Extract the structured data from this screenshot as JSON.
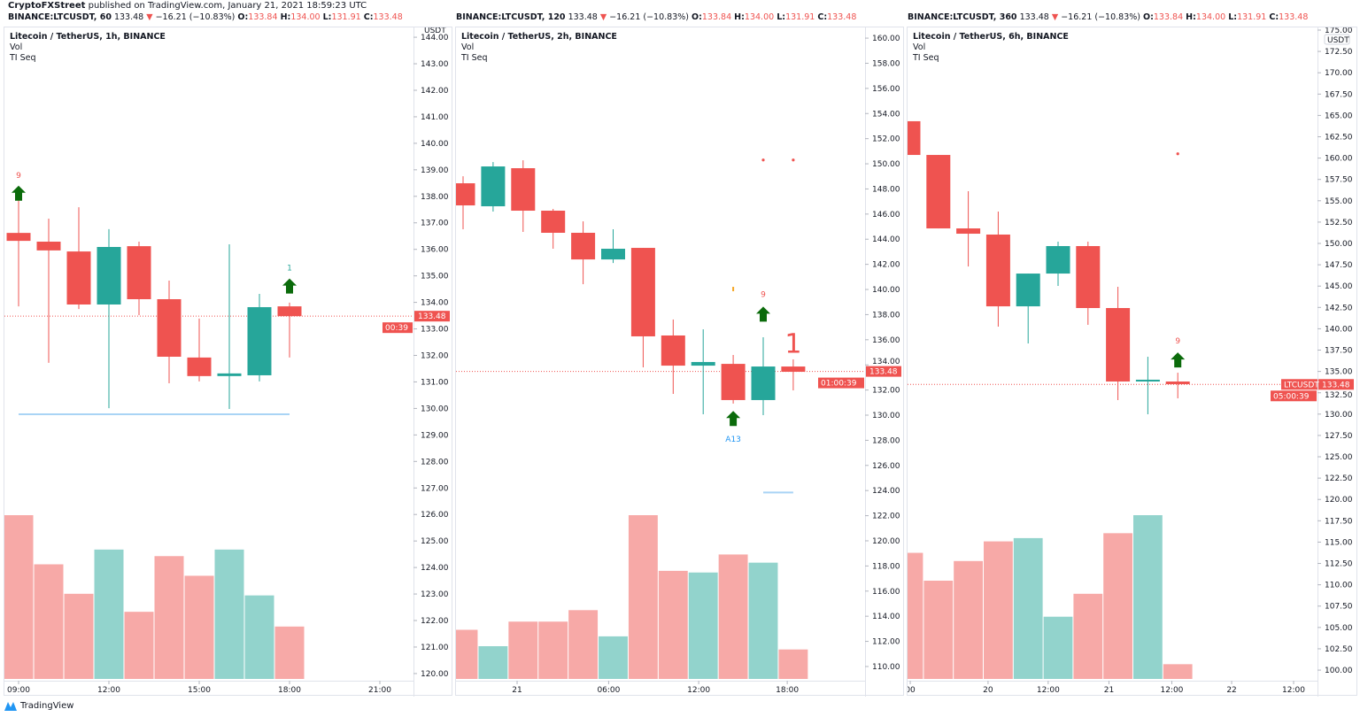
{
  "header": {
    "author": "CryptoFXStreet",
    "published": "published on TradingView.com, January 21, 2021 18:59:23 UTC"
  },
  "colors": {
    "up": "#26a69a",
    "down": "#ef5350",
    "vol_up": "#92d3cc",
    "vol_down": "#f7a9a7",
    "arrow": "#0b6b0b",
    "guide": "#a9d4f5"
  },
  "panels": [
    {
      "symbol": "BINANCE:LTCUSDT, 60",
      "last": "133.48",
      "change": "−16.21 (−10.83%)",
      "o": "133.84",
      "h": "134.00",
      "l": "131.91",
      "c": "133.48",
      "title": "Litecoin / TetherUS, 1h, BINANCE",
      "indicators": [
        "Vol",
        "TI Seq"
      ],
      "currency": "USDT",
      "price_label": "133.48",
      "countdown": "00:39",
      "ylim": [
        119.73,
        144.37
      ],
      "price_ticks": [
        "144.00",
        "143.00",
        "142.00",
        "141.00",
        "140.00",
        "139.00",
        "138.00",
        "137.00",
        "136.00",
        "135.00",
        "134.00",
        "133.00",
        "132.00",
        "131.00",
        "130.00",
        "129.00",
        "128.00",
        "127.00",
        "126.00",
        "125.00",
        "124.00",
        "123.00",
        "122.00",
        "121.00",
        "120.00"
      ],
      "time_ticks": [
        "09:00",
        "12:00",
        "15:00",
        "18:00",
        "21:00"
      ],
      "candles": [
        [
          136.62,
          137.96,
          133.85,
          136.32
        ],
        [
          136.29,
          137.16,
          131.72,
          135.96
        ],
        [
          135.92,
          137.59,
          133.75,
          133.92
        ],
        [
          133.92,
          136.76,
          130.01,
          136.09
        ],
        [
          136.12,
          136.29,
          133.52,
          134.12
        ],
        [
          134.12,
          134.82,
          130.95,
          131.95
        ],
        [
          131.92,
          133.39,
          131.02,
          131.22
        ],
        [
          131.22,
          136.19,
          129.98,
          131.32
        ],
        [
          131.25,
          134.32,
          131.02,
          133.82
        ],
        [
          133.85,
          133.99,
          131.92,
          133.48
        ]
      ],
      "volume_relative": [
        100,
        70,
        52,
        79,
        41,
        75,
        63,
        79,
        51,
        32
      ],
      "markers": [
        {
          "i": 0,
          "type": "text",
          "price": 138.8,
          "text": "9",
          "color": "#ef5350"
        },
        {
          "i": 0,
          "type": "arrow-up",
          "price": 138.1
        },
        {
          "i": 9,
          "type": "text",
          "price": 135.3,
          "text": "1",
          "color": "#26a69a"
        },
        {
          "i": 9,
          "type": "arrow-up",
          "price": 134.6
        }
      ],
      "guide_line": {
        "price": 129.78,
        "from": 0,
        "to": 9
      }
    },
    {
      "symbol": "BINANCE:LTCUSDT, 120",
      "last": "133.48",
      "change": "−16.21 (−10.83%)",
      "o": "133.84",
      "h": "134.00",
      "l": "131.91",
      "c": "133.48",
      "title": "Litecoin / TetherUS, 2h, BINANCE",
      "indicators": [
        "Vol",
        "TI Seq"
      ],
      "currency": "",
      "price_label": "133.48",
      "countdown": "01:00:39",
      "ylim": [
        108.87,
        160.85
      ],
      "price_ticks": [
        "160.00",
        "158.00",
        "156.00",
        "154.00",
        "152.00",
        "150.00",
        "148.00",
        "146.00",
        "144.00",
        "142.00",
        "140.00",
        "138.00",
        "136.00",
        "134.00",
        "132.00",
        "130.00",
        "128.00",
        "126.00",
        "124.00",
        "122.00",
        "120.00",
        "118.00",
        "116.00",
        "114.00",
        "112.00",
        "110.00"
      ],
      "time_ticks": [
        "21",
        "06:00",
        "12:00",
        "18:00"
      ],
      "candles": [
        [
          148.45,
          149.01,
          144.79,
          146.69
        ],
        [
          146.62,
          150.14,
          146.2,
          149.79
        ],
        [
          149.65,
          150.28,
          144.58,
          146.27
        ],
        [
          146.27,
          146.41,
          143.24,
          144.51
        ],
        [
          144.51,
          145.42,
          140.42,
          142.39
        ],
        [
          142.39,
          144.79,
          142.11,
          143.24
        ],
        [
          143.31,
          143.31,
          133.8,
          136.27
        ],
        [
          136.34,
          137.61,
          131.69,
          133.94
        ],
        [
          133.94,
          136.83,
          130.07,
          134.23
        ],
        [
          134.08,
          134.79,
          130.92,
          131.2
        ],
        [
          131.2,
          136.2,
          130.0,
          133.87
        ],
        [
          133.87,
          134.44,
          131.97,
          133.45
        ]
      ],
      "volume_relative": [
        30,
        20,
        35,
        35,
        42,
        26,
        100,
        66,
        65,
        76,
        71,
        18
      ],
      "markers": [
        {
          "i": 10,
          "type": "dot",
          "price": 150.3,
          "color": "#ef5350"
        },
        {
          "i": 11,
          "type": "dot",
          "price": 150.3,
          "color": "#ef5350"
        },
        {
          "i": 9,
          "type": "tick",
          "price": 140.0,
          "color": "#f5a623"
        },
        {
          "i": 10,
          "type": "text",
          "price": 139.6,
          "text": "9",
          "color": "#ef5350"
        },
        {
          "i": 10,
          "type": "arrow-up",
          "price": 138.0
        },
        {
          "i": 11,
          "type": "bigtext",
          "price": 135.8,
          "text": "1",
          "color": "#ef5350"
        },
        {
          "i": 9,
          "type": "arrow-up",
          "price": 129.7
        },
        {
          "i": 9,
          "type": "text",
          "price": 128.1,
          "text": "A13",
          "color": "#2196f3"
        }
      ],
      "guide_line": {
        "price": 123.85,
        "from": 10,
        "to": 11
      }
    },
    {
      "symbol": "BINANCE:LTCUSDT, 360",
      "last": "133.48",
      "change": "−16.21 (−10.83%)",
      "o": "133.84",
      "h": "134.00",
      "l": "131.91",
      "c": "133.48",
      "title": "Litecoin / TetherUS, 6h, BINANCE",
      "indicators": [
        "Vol",
        "TI Seq"
      ],
      "currency": "USDT",
      "symbol_label": "LTCUSDT",
      "price_label": "133.48",
      "countdown": "05:00:39",
      "ylim": [
        98.76,
        175.31
      ],
      "price_ticks": [
        "175.00",
        "172.50",
        "170.00",
        "167.50",
        "165.00",
        "162.50",
        "160.00",
        "157.50",
        "155.00",
        "152.50",
        "150.00",
        "147.50",
        "145.00",
        "142.50",
        "140.00",
        "137.50",
        "135.00",
        "132.50",
        "130.00",
        "127.50",
        "125.00",
        "122.50",
        "120.00",
        "117.50",
        "115.00",
        "112.50",
        "110.00",
        "107.50",
        "105.00",
        "102.50",
        "100.00"
      ],
      "time_ticks": [
        "00",
        "20",
        "12:00",
        "21",
        "12:00",
        "22",
        "12:00"
      ],
      "candles": [
        [
          164.32,
          164.32,
          160.37,
          160.37
        ],
        [
          160.37,
          160.37,
          151.76,
          151.76
        ],
        [
          151.76,
          156.12,
          147.3,
          151.14
        ],
        [
          151.04,
          153.73,
          140.25,
          142.63
        ],
        [
          142.63,
          146.47,
          138.28,
          146.47
        ],
        [
          146.47,
          150.21,
          145.02,
          149.69
        ],
        [
          149.69,
          150.21,
          140.46,
          142.43
        ],
        [
          142.43,
          144.92,
          131.64,
          133.82
        ],
        [
          133.82,
          136.72,
          129.98,
          134.03
        ],
        [
          133.82,
          134.85,
          131.85,
          133.51
        ]
      ],
      "volume_relative": [
        77,
        60,
        72,
        84,
        86,
        38,
        52,
        89,
        100,
        9
      ],
      "markers": [
        {
          "i": 9,
          "type": "dot",
          "price": 160.5,
          "color": "#ef5350"
        },
        {
          "i": 9,
          "type": "text",
          "price": 138.6,
          "text": "9",
          "color": "#ef5350"
        },
        {
          "i": 9,
          "type": "arrow-up",
          "price": 136.3
        }
      ]
    }
  ],
  "footer": {
    "brand": "TradingView"
  }
}
